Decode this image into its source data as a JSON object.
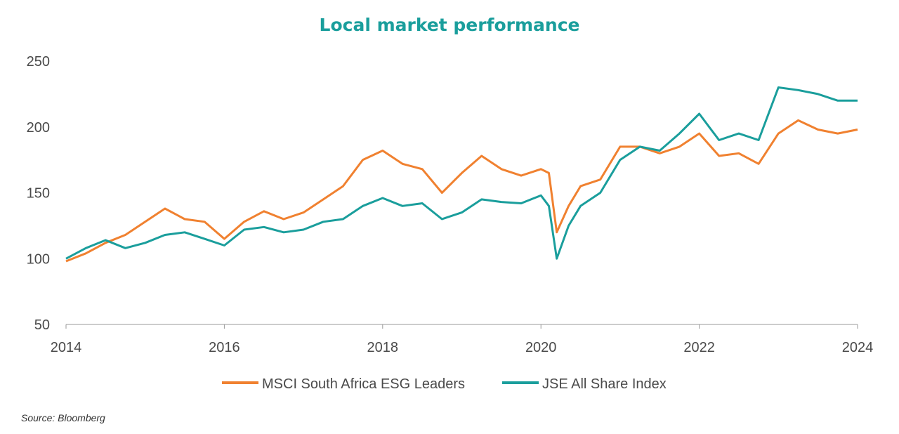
{
  "chart_data": {
    "type": "line",
    "title": "Local market performance",
    "xlabel": "",
    "ylabel": "",
    "xlim": [
      2014,
      2024
    ],
    "ylim": [
      50,
      250
    ],
    "x_ticks": [
      "2014",
      "2016",
      "2018",
      "2020",
      "2022",
      "2024"
    ],
    "y_ticks": [
      "250",
      "200",
      "150",
      "100",
      "50"
    ],
    "grid": false,
    "legend_position": "bottom",
    "x": [
      2014.0,
      2014.25,
      2014.5,
      2014.75,
      2015.0,
      2015.25,
      2015.5,
      2015.75,
      2016.0,
      2016.25,
      2016.5,
      2016.75,
      2017.0,
      2017.25,
      2017.5,
      2017.75,
      2018.0,
      2018.25,
      2018.5,
      2018.75,
      2019.0,
      2019.25,
      2019.5,
      2019.75,
      2020.0,
      2020.1,
      2020.2,
      2020.35,
      2020.5,
      2020.75,
      2021.0,
      2021.25,
      2021.5,
      2021.75,
      2022.0,
      2022.25,
      2022.5,
      2022.75,
      2023.0,
      2023.25,
      2023.5,
      2023.75,
      2024.0
    ],
    "series": [
      {
        "name": "MSCI South Africa ESG Leaders",
        "color": "#f08130",
        "values": [
          98,
          104,
          112,
          118,
          128,
          138,
          130,
          128,
          115,
          128,
          136,
          130,
          135,
          145,
          155,
          175,
          182,
          172,
          168,
          150,
          165,
          178,
          168,
          163,
          168,
          165,
          120,
          140,
          155,
          160,
          185,
          185,
          180,
          185,
          195,
          178,
          180,
          172,
          195,
          205,
          198,
          195,
          198
        ]
      },
      {
        "name": "JSE All Share Index",
        "color": "#1a9e9c",
        "values": [
          100,
          108,
          114,
          108,
          112,
          118,
          120,
          115,
          110,
          122,
          124,
          120,
          122,
          128,
          130,
          140,
          146,
          140,
          142,
          130,
          135,
          145,
          143,
          142,
          148,
          140,
          100,
          125,
          140,
          150,
          175,
          185,
          182,
          195,
          210,
          190,
          195,
          190,
          230,
          228,
          225,
          220,
          220
        ]
      }
    ]
  },
  "source": "Source: Bloomberg"
}
